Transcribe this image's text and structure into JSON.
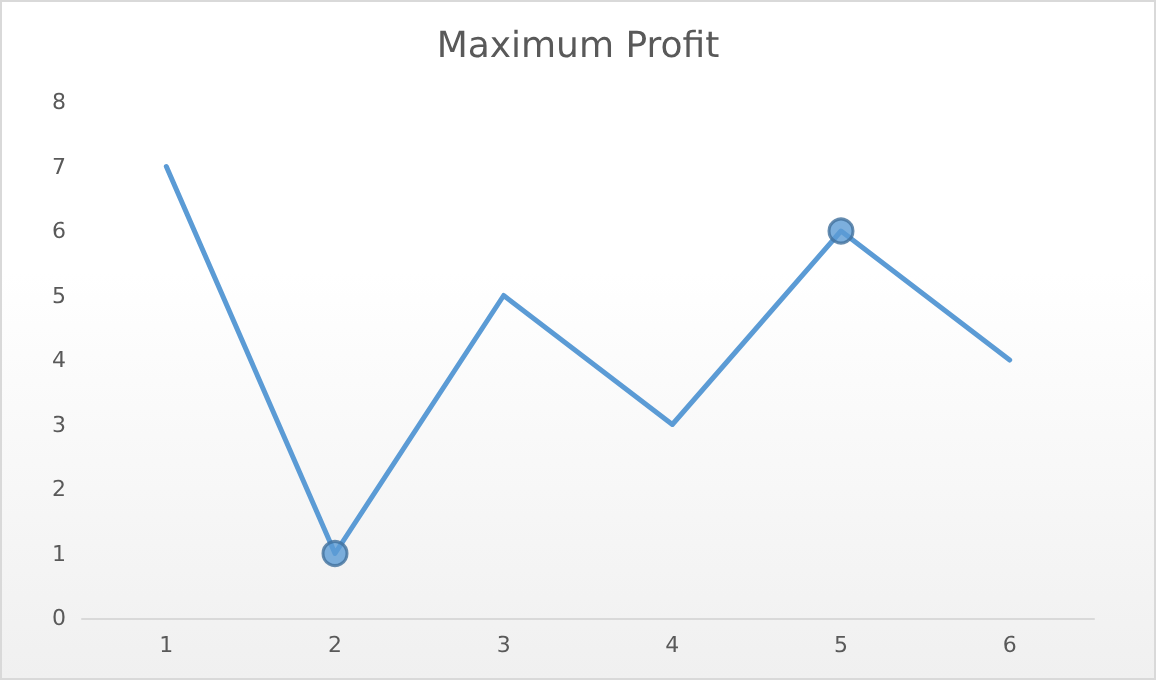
{
  "chart_data": {
    "type": "line",
    "title": "Maximum Profit",
    "categories": [
      "1",
      "2",
      "3",
      "4",
      "5",
      "6"
    ],
    "series": [
      {
        "color": "#5b9bd5",
        "values": [
          7,
          1,
          5,
          3,
          6,
          4
        ],
        "marker": "none"
      },
      {
        "type": "scatter",
        "color": "#5b9bd5",
        "x": [
          "2",
          "5"
        ],
        "values": [
          1,
          6
        ],
        "marker": "circle"
      }
    ],
    "ylim": [
      0,
      8
    ],
    "yticks": [
      0,
      1,
      2,
      3,
      4,
      5,
      6,
      7,
      8
    ],
    "grid": false
  }
}
